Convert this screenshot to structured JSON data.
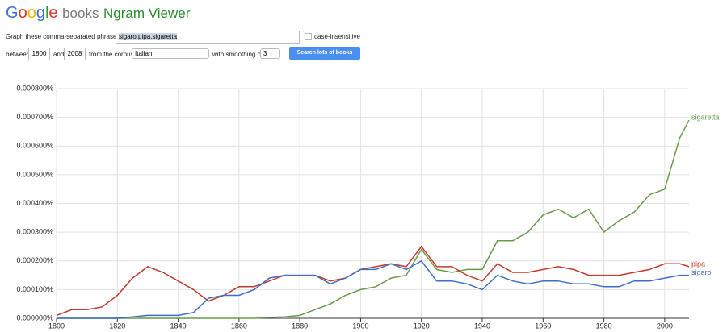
{
  "header": {
    "logo": "Google",
    "product": "books",
    "app": "Ngram Viewer"
  },
  "form": {
    "phrases_label": "Graph these comma-separated phrases:",
    "phrases_value": "sigaro,pipa,sigaretta",
    "case_label": "case-insensitive",
    "between_label": "between",
    "start_year": "1800",
    "and_label": "and",
    "end_year": "2008",
    "corpus_label": "from the corpus",
    "corpus": "Italian",
    "smoothing_label": "with smoothing of",
    "smoothing": "3",
    "period": ".",
    "button": "Search lots of books"
  },
  "chart_data": {
    "type": "line",
    "x": [
      1800,
      1805,
      1810,
      1815,
      1820,
      1825,
      1830,
      1835,
      1840,
      1845,
      1850,
      1855,
      1860,
      1865,
      1870,
      1875,
      1880,
      1885,
      1890,
      1895,
      1900,
      1905,
      1910,
      1915,
      1920,
      1925,
      1930,
      1935,
      1940,
      1945,
      1950,
      1955,
      1960,
      1965,
      1970,
      1975,
      1980,
      1985,
      1990,
      1995,
      2000,
      2005,
      2008
    ],
    "series": [
      {
        "name": "sigaretta",
        "color": "#6a9a48",
        "values": [
          0,
          0,
          0,
          0,
          0,
          0,
          0,
          0,
          0,
          0,
          0,
          0,
          0,
          0,
          3e-06,
          5e-06,
          1e-05,
          3e-05,
          5e-05,
          8e-05,
          0.0001,
          0.00011,
          0.00014,
          0.00015,
          0.00024,
          0.00017,
          0.00016,
          0.00017,
          0.00017,
          0.00027,
          0.00027,
          0.0003,
          0.00036,
          0.00038,
          0.00035,
          0.00038,
          0.0003,
          0.00034,
          0.00037,
          0.00043,
          0.00045,
          0.00063,
          0.00069
        ]
      },
      {
        "name": "pipa",
        "color": "#c43a2c",
        "values": [
          1e-05,
          3e-05,
          3e-05,
          4e-05,
          8e-05,
          0.00014,
          0.00018,
          0.00016,
          0.00013,
          0.0001,
          6e-05,
          8e-05,
          0.00011,
          0.00011,
          0.00013,
          0.00015,
          0.00015,
          0.00015,
          0.00013,
          0.00014,
          0.00017,
          0.00018,
          0.00019,
          0.00018,
          0.00025,
          0.00018,
          0.00018,
          0.00015,
          0.00013,
          0.00019,
          0.00016,
          0.00016,
          0.00017,
          0.00018,
          0.00017,
          0.00015,
          0.00015,
          0.00015,
          0.00016,
          0.00017,
          0.00019,
          0.00019,
          0.00018
        ]
      },
      {
        "name": "sigaro",
        "color": "#3e6fc4",
        "values": [
          0,
          0,
          0,
          0,
          0,
          5e-06,
          1e-05,
          1e-05,
          1e-05,
          2e-05,
          7e-05,
          8e-05,
          8e-05,
          0.0001,
          0.00014,
          0.00015,
          0.00015,
          0.00015,
          0.00012,
          0.00014,
          0.00017,
          0.00017,
          0.00019,
          0.00017,
          0.0002,
          0.00013,
          0.00013,
          0.00012,
          0.0001,
          0.00015,
          0.00013,
          0.00012,
          0.00013,
          0.00013,
          0.00012,
          0.00012,
          0.00011,
          0.00011,
          0.00013,
          0.00013,
          0.00014,
          0.00015,
          0.00015
        ]
      }
    ],
    "xlim": [
      1800,
      2008
    ],
    "xticks": [
      1800,
      1820,
      1840,
      1860,
      1880,
      1900,
      1920,
      1940,
      1960,
      1980,
      2000
    ],
    "ylim": [
      0,
      0.0008
    ],
    "yticks": [
      {
        "value": 0,
        "label": "0.000000%"
      },
      {
        "value": 0.0001,
        "label": "0.000100%"
      },
      {
        "value": 0.0002,
        "label": "0.000200%"
      },
      {
        "value": 0.0003,
        "label": "0.000300%"
      },
      {
        "value": 0.0004,
        "label": "0.000400%"
      },
      {
        "value": 0.0005,
        "label": "0.000500%"
      },
      {
        "value": 0.0006,
        "label": "0.000600%"
      },
      {
        "value": 0.0007,
        "label": "0.000700%"
      },
      {
        "value": 0.0008,
        "label": "0.000800%"
      }
    ],
    "grid": true
  }
}
